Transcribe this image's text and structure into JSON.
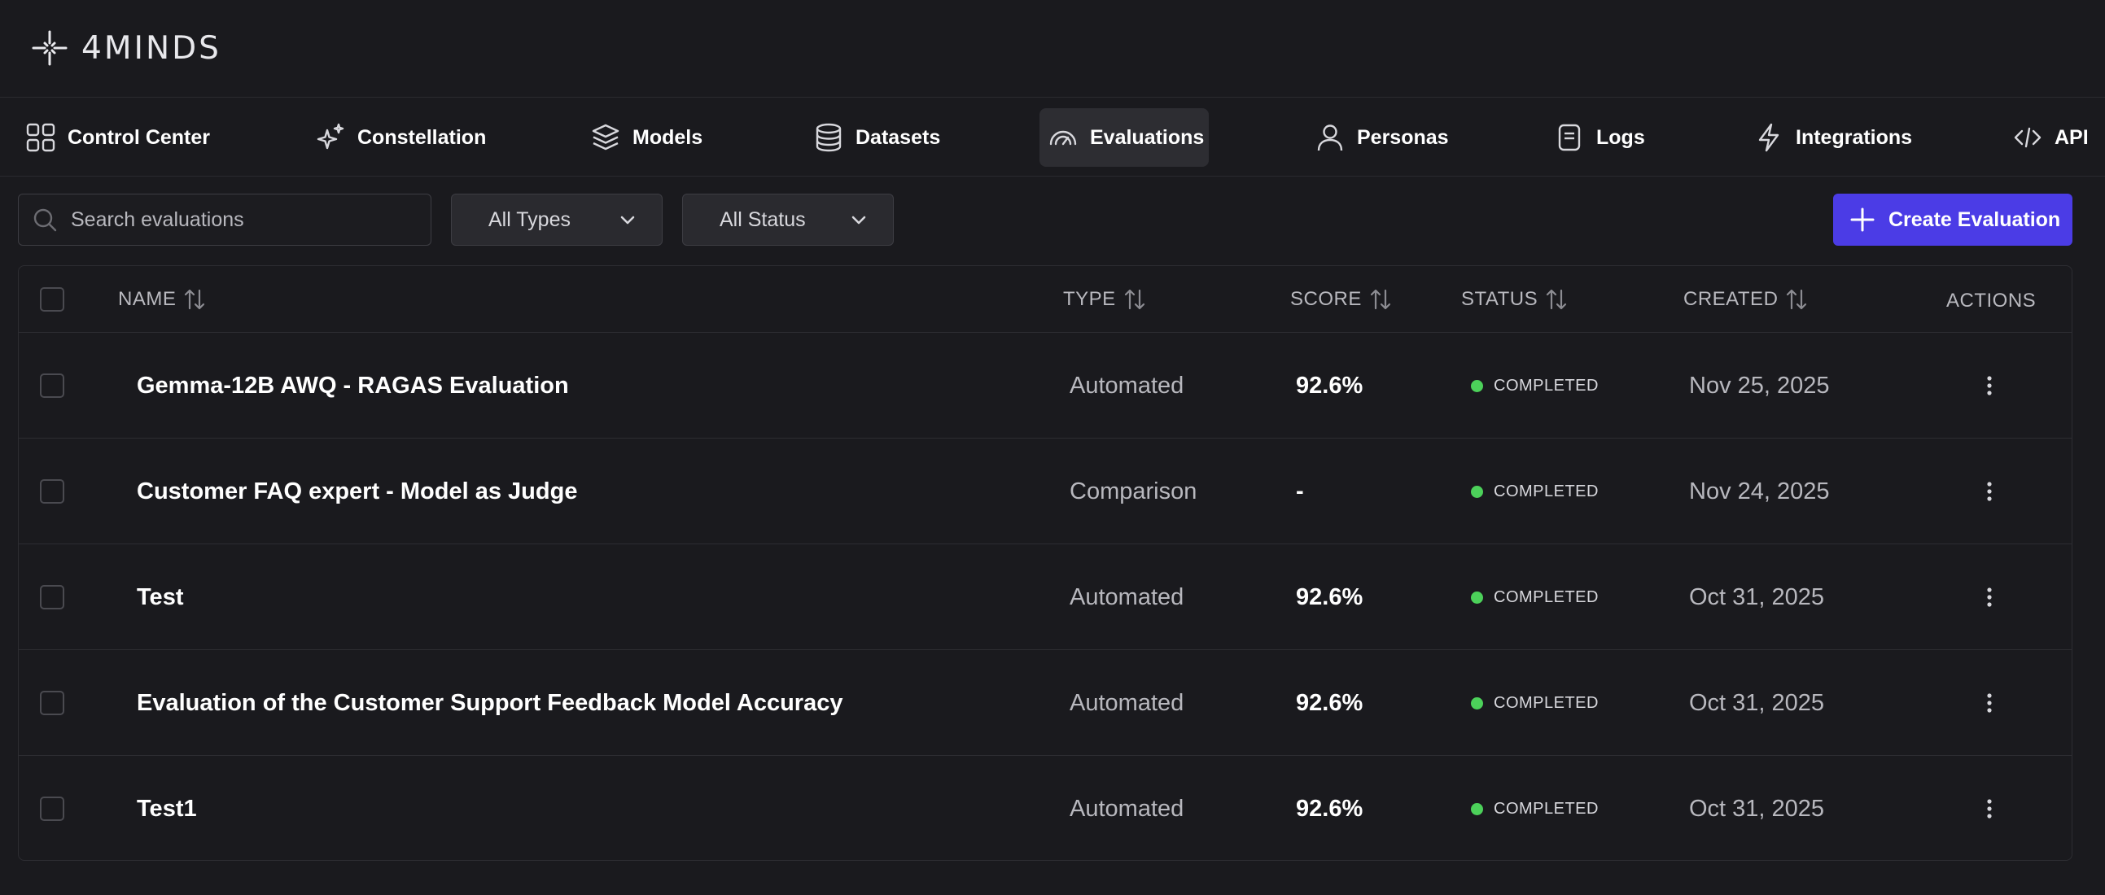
{
  "app": {
    "name": "4MINDS"
  },
  "nav": {
    "items": [
      {
        "label": "Control Center",
        "icon": "grid-icon",
        "active": false
      },
      {
        "label": "Constellation",
        "icon": "sparkles-icon",
        "active": false
      },
      {
        "label": "Models",
        "icon": "layers-icon",
        "active": false
      },
      {
        "label": "Datasets",
        "icon": "database-icon",
        "active": false
      },
      {
        "label": "Evaluations",
        "icon": "gauge-icon",
        "active": true
      },
      {
        "label": "Personas",
        "icon": "user-icon",
        "active": false
      },
      {
        "label": "Logs",
        "icon": "file-icon",
        "active": false
      },
      {
        "label": "Integrations",
        "icon": "bolt-icon",
        "active": false
      },
      {
        "label": "API",
        "icon": "code-icon",
        "active": false
      }
    ]
  },
  "toolbar": {
    "search_placeholder": "Search evaluations",
    "type_filter": "All Types",
    "status_filter": "All Status",
    "create_label": "Create Evaluation"
  },
  "table": {
    "columns": {
      "name": "NAME",
      "type": "TYPE",
      "score": "SCORE",
      "status": "STATUS",
      "created": "CREATED",
      "actions": "ACTIONS"
    },
    "rows": [
      {
        "name": "Gemma-12B AWQ - RAGAS Evaluation",
        "type": "Automated",
        "score": "92.6%",
        "status": "COMPLETED",
        "created": "Nov 25, 2025"
      },
      {
        "name": "Customer FAQ expert - Model as Judge",
        "type": "Comparison",
        "score": "-",
        "status": "COMPLETED",
        "created": "Nov 24, 2025"
      },
      {
        "name": "Test",
        "type": "Automated",
        "score": "92.6%",
        "status": "COMPLETED",
        "created": "Oct 31, 2025"
      },
      {
        "name": "Evaluation of the Customer Support Feedback Model Accuracy",
        "type": "Automated",
        "score": "92.6%",
        "status": "COMPLETED",
        "created": "Oct 31, 2025"
      },
      {
        "name": "Test1",
        "type": "Automated",
        "score": "92.6%",
        "status": "COMPLETED",
        "created": "Oct 31, 2025"
      }
    ]
  },
  "colors": {
    "background": "#1a1a1e",
    "accent": "#4b3ce6",
    "status_completed": "#4cd15a",
    "active_nav": "#2d2d32"
  }
}
